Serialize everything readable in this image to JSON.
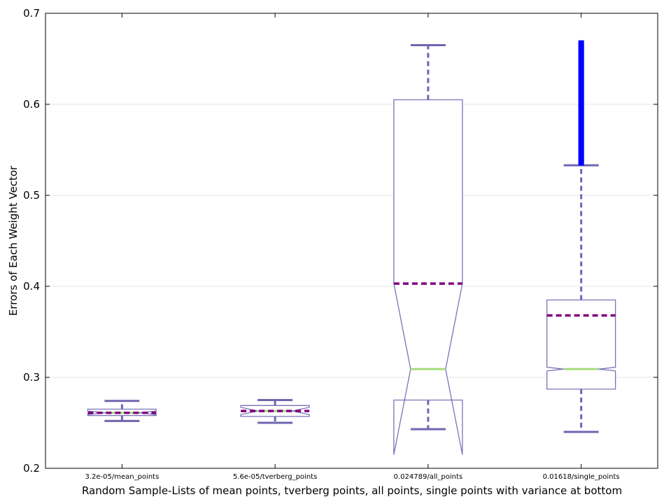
{
  "chart_data": {
    "type": "boxplot",
    "xlabel": "Random Sample-Lists of  mean points, tverberg points, all points, single points with variance at bottom",
    "ylabel": "Errors of Each Weight Vector",
    "ylim": [
      0.2,
      0.7
    ],
    "yticks": [
      "0.2",
      "0.3",
      "0.4",
      "0.5",
      "0.6",
      "0.7"
    ],
    "grid": "horizontal",
    "colors": {
      "box": "#7b72b8",
      "whisker": "#6e66b0",
      "mean": "#800080",
      "median": "#a6dc7f",
      "outlier": "#0000ff",
      "grid": "#e6e6e6"
    },
    "categories": [
      "3.2e-05/mean_points",
      "5.6e-05/tverberg_points",
      "0.024789/all_points",
      "0.01618/single_points"
    ],
    "boxes": [
      {
        "whislo": 0.252,
        "q1": 0.258,
        "med": 0.261,
        "q3": 0.265,
        "whishi": 0.274,
        "mean": 0.261,
        "notch_lo": 0.259,
        "notch_hi": 0.263,
        "fliers_range": null
      },
      {
        "whislo": 0.25,
        "q1": 0.257,
        "med": 0.263,
        "q3": 0.269,
        "whishi": 0.275,
        "mean": 0.263,
        "notch_lo": 0.259,
        "notch_hi": 0.267,
        "fliers_range": null
      },
      {
        "whislo": 0.243,
        "q1": 0.275,
        "med": 0.309,
        "q3": 0.605,
        "whishi": 0.665,
        "mean": 0.403,
        "notch_lo": 0.215,
        "notch_hi": 0.403,
        "fliers_range": null
      },
      {
        "whislo": 0.24,
        "q1": 0.287,
        "med": 0.309,
        "q3": 0.385,
        "whishi": 0.533,
        "mean": 0.368,
        "notch_lo": 0.307,
        "notch_hi": 0.311,
        "fliers_range": [
          0.535,
          0.668
        ]
      }
    ]
  }
}
